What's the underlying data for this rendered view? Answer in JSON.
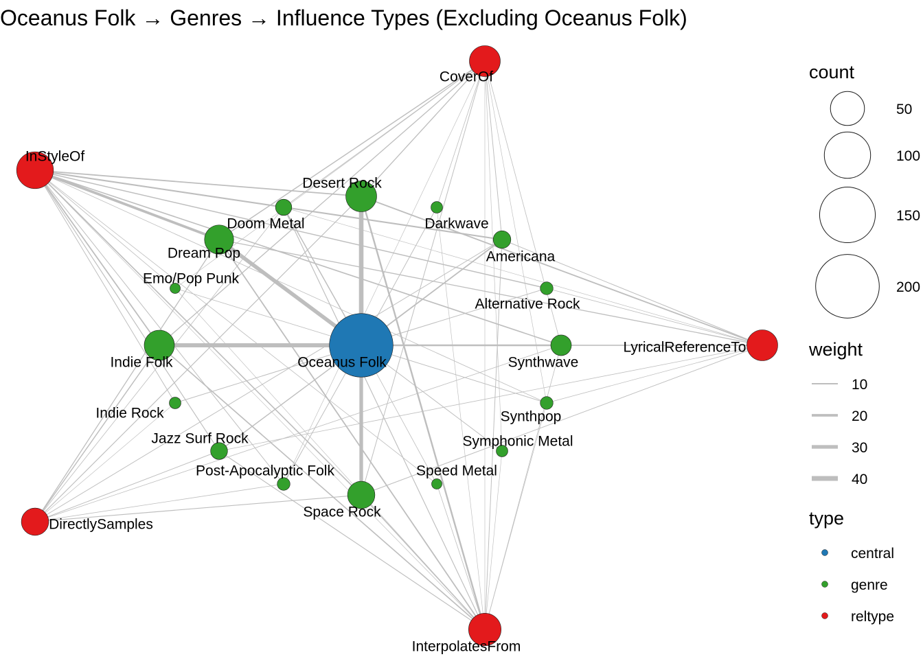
{
  "title": "Oceanus Folk → Genres → Influence Types (Excluding Oceanus Folk)",
  "colors": {
    "central": "#1F78B4",
    "genre": "#33A02C",
    "reltype": "#E31A1C",
    "edge": "#BEBEBE"
  },
  "nodes": [
    {
      "id": "oceanus",
      "label": "Oceanus Folk",
      "type": "central",
      "count": 200
    },
    {
      "id": "desert_rock",
      "label": "Desert Rock",
      "type": "genre",
      "count": 40
    },
    {
      "id": "doom_metal",
      "label": "Doom Metal",
      "type": "genre",
      "count": 8
    },
    {
      "id": "darkwave",
      "label": "Darkwave",
      "type": "genre",
      "count": 3
    },
    {
      "id": "dream_pop",
      "label": "Dream Pop",
      "type": "genre",
      "count": 35
    },
    {
      "id": "americana",
      "label": "Americana",
      "type": "genre",
      "count": 10
    },
    {
      "id": "emo_pop_punk",
      "label": "Emo/Pop Punk",
      "type": "genre",
      "count": 2
    },
    {
      "id": "alt_rock",
      "label": "Alternative Rock",
      "type": "genre",
      "count": 4
    },
    {
      "id": "indie_folk",
      "label": "Indie Folk",
      "type": "genre",
      "count": 38
    },
    {
      "id": "synthwave",
      "label": "Synthwave",
      "type": "genre",
      "count": 15
    },
    {
      "id": "indie_rock",
      "label": "Indie Rock",
      "type": "genre",
      "count": 3
    },
    {
      "id": "synthpop",
      "label": "Synthpop",
      "type": "genre",
      "count": 4
    },
    {
      "id": "jazz_surf_rock",
      "label": "Jazz Surf Rock",
      "type": "genre",
      "count": 9
    },
    {
      "id": "symphonic_metal",
      "label": "Symphonic Metal",
      "type": "genre",
      "count": 3
    },
    {
      "id": "post_apoc_folk",
      "label": "Post-Apocalyptic Folk",
      "type": "genre",
      "count": 4
    },
    {
      "id": "speed_metal",
      "label": "Speed Metal",
      "type": "genre",
      "count": 2
    },
    {
      "id": "space_rock",
      "label": "Space Rock",
      "type": "genre",
      "count": 30
    },
    {
      "id": "cover_of",
      "label": "CoverOf",
      "type": "reltype",
      "count": 40
    },
    {
      "id": "in_style_of",
      "label": "InStyleOf",
      "type": "reltype",
      "count": 60
    },
    {
      "id": "lyrical_ref",
      "label": "LyricalReferenceTo",
      "type": "reltype",
      "count": 40
    },
    {
      "id": "directly_samples",
      "label": "DirectlySamples",
      "type": "reltype",
      "count": 30
    },
    {
      "id": "interpolates_from",
      "label": "InterpolatesFrom",
      "type": "reltype",
      "count": 45
    }
  ],
  "edges": [
    {
      "s": "oceanus",
      "t": "desert_rock",
      "w": 38
    },
    {
      "s": "oceanus",
      "t": "indie_folk",
      "w": 35
    },
    {
      "s": "oceanus",
      "t": "space_rock",
      "w": 30
    },
    {
      "s": "oceanus",
      "t": "dream_pop",
      "w": 32
    },
    {
      "s": "oceanus",
      "t": "synthwave",
      "w": 12
    },
    {
      "s": "oceanus",
      "t": "americana",
      "w": 8
    },
    {
      "s": "oceanus",
      "t": "doom_metal",
      "w": 6
    },
    {
      "s": "oceanus",
      "t": "jazz_surf_rock",
      "w": 6
    },
    {
      "s": "oceanus",
      "t": "darkwave",
      "w": 3
    },
    {
      "s": "oceanus",
      "t": "emo_pop_punk",
      "w": 2
    },
    {
      "s": "oceanus",
      "t": "alt_rock",
      "w": 3
    },
    {
      "s": "oceanus",
      "t": "indie_rock",
      "w": 3
    },
    {
      "s": "oceanus",
      "t": "synthpop",
      "w": 3
    },
    {
      "s": "oceanus",
      "t": "symphonic_metal",
      "w": 3
    },
    {
      "s": "oceanus",
      "t": "post_apoc_folk",
      "w": 3
    },
    {
      "s": "oceanus",
      "t": "speed_metal",
      "w": 2
    },
    {
      "s": "in_style_of",
      "t": "dream_pop",
      "w": 20
    },
    {
      "s": "in_style_of",
      "t": "desert_rock",
      "w": 8
    },
    {
      "s": "in_style_of",
      "t": "americana",
      "w": 10
    },
    {
      "s": "in_style_of",
      "t": "doom_metal",
      "w": 5
    },
    {
      "s": "in_style_of",
      "t": "alt_rock",
      "w": 6
    },
    {
      "s": "in_style_of",
      "t": "synthwave",
      "w": 7
    },
    {
      "s": "in_style_of",
      "t": "indie_folk",
      "w": 8
    },
    {
      "s": "in_style_of",
      "t": "space_rock",
      "w": 7
    },
    {
      "s": "in_style_of",
      "t": "jazz_surf_rock",
      "w": 4
    },
    {
      "s": "in_style_of",
      "t": "emo_pop_punk",
      "w": 2
    },
    {
      "s": "in_style_of",
      "t": "indie_rock",
      "w": 3
    },
    {
      "s": "in_style_of",
      "t": "synthpop",
      "w": 2
    },
    {
      "s": "in_style_of",
      "t": "speed_metal",
      "w": 2
    },
    {
      "s": "in_style_of",
      "t": "post_apoc_folk",
      "w": 3
    },
    {
      "s": "in_style_of",
      "t": "interpolates_from",
      "w": 1
    },
    {
      "s": "cover_of",
      "t": "desert_rock",
      "w": 5
    },
    {
      "s": "cover_of",
      "t": "dream_pop",
      "w": 6
    },
    {
      "s": "cover_of",
      "t": "indie_folk",
      "w": 5
    },
    {
      "s": "cover_of",
      "t": "doom_metal",
      "w": 3
    },
    {
      "s": "cover_of",
      "t": "americana",
      "w": 3
    },
    {
      "s": "cover_of",
      "t": "synthwave",
      "w": 2
    },
    {
      "s": "cover_of",
      "t": "space_rock",
      "w": 3
    },
    {
      "s": "cover_of",
      "t": "darkwave",
      "w": 2
    },
    {
      "s": "cover_of",
      "t": "synthpop",
      "w": 1
    },
    {
      "s": "cover_of",
      "t": "symphonic_metal",
      "w": 1
    },
    {
      "s": "cover_of",
      "t": "post_apoc_folk",
      "w": 1
    },
    {
      "s": "cover_of",
      "t": "emo_pop_punk",
      "w": 1
    },
    {
      "s": "lyrical_ref",
      "t": "desert_rock",
      "w": 8
    },
    {
      "s": "lyrical_ref",
      "t": "synthwave",
      "w": 6
    },
    {
      "s": "lyrical_ref",
      "t": "dream_pop",
      "w": 5
    },
    {
      "s": "lyrical_ref",
      "t": "indie_folk",
      "w": 4
    },
    {
      "s": "lyrical_ref",
      "t": "americana",
      "w": 3
    },
    {
      "s": "lyrical_ref",
      "t": "space_rock",
      "w": 3
    },
    {
      "s": "lyrical_ref",
      "t": "synthpop",
      "w": 2
    },
    {
      "s": "lyrical_ref",
      "t": "jazz_surf_rock",
      "w": 2
    },
    {
      "s": "lyrical_ref",
      "t": "alt_rock",
      "w": 2
    },
    {
      "s": "lyrical_ref",
      "t": "doom_metal",
      "w": 1
    },
    {
      "s": "directly_samples",
      "t": "indie_folk",
      "w": 6
    },
    {
      "s": "directly_samples",
      "t": "dream_pop",
      "w": 5
    },
    {
      "s": "directly_samples",
      "t": "space_rock",
      "w": 4
    },
    {
      "s": "directly_samples",
      "t": "desert_rock",
      "w": 4
    },
    {
      "s": "directly_samples",
      "t": "jazz_surf_rock",
      "w": 3
    },
    {
      "s": "directly_samples",
      "t": "americana",
      "w": 3
    },
    {
      "s": "directly_samples",
      "t": "synthwave",
      "w": 2
    },
    {
      "s": "directly_samples",
      "t": "post_apoc_folk",
      "w": 2
    },
    {
      "s": "directly_samples",
      "t": "doom_metal",
      "w": 2
    },
    {
      "s": "directly_samples",
      "t": "indie_rock",
      "w": 1
    },
    {
      "s": "interpolates_from",
      "t": "desert_rock",
      "w": 12
    },
    {
      "s": "interpolates_from",
      "t": "dream_pop",
      "w": 8
    },
    {
      "s": "interpolates_from",
      "t": "indie_folk",
      "w": 7
    },
    {
      "s": "interpolates_from",
      "t": "space_rock",
      "w": 6
    },
    {
      "s": "interpolates_from",
      "t": "doom_metal",
      "w": 4
    },
    {
      "s": "interpolates_from",
      "t": "jazz_surf_rock",
      "w": 4
    },
    {
      "s": "interpolates_from",
      "t": "americana",
      "w": 3
    },
    {
      "s": "interpolates_from",
      "t": "synthwave",
      "w": 2
    },
    {
      "s": "interpolates_from",
      "t": "speed_metal",
      "w": 2
    },
    {
      "s": "interpolates_from",
      "t": "darkwave",
      "w": 1
    },
    {
      "s": "interpolates_from",
      "t": "symphonic_metal",
      "w": 1
    },
    {
      "s": "interpolates_from",
      "t": "emo_pop_punk",
      "w": 1
    },
    {
      "s": "interpolates_from",
      "t": "synthpop",
      "w": 1
    },
    {
      "s": "interpolates_from",
      "t": "cover_of",
      "w": 1
    }
  ],
  "legend": {
    "count_title": "count",
    "count_values": [
      50,
      100,
      150,
      200
    ],
    "weight_title": "weight",
    "weight_values": [
      10,
      20,
      30,
      40
    ],
    "type_title": "type",
    "type_values": [
      "central",
      "genre",
      "reltype"
    ]
  }
}
